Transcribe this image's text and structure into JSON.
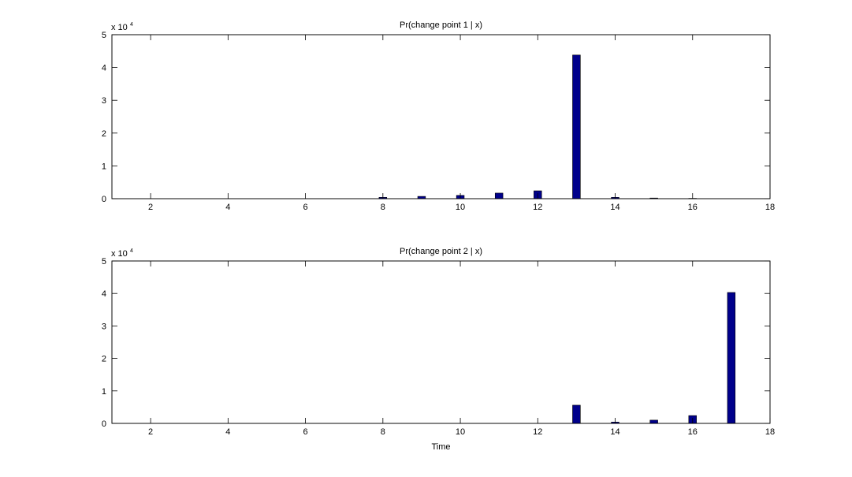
{
  "chart_data": [
    {
      "type": "bar",
      "title": "Pr(change point 1 | x)",
      "multiplier": {
        "base": "x 10",
        "exponent": "4"
      },
      "x": [
        8,
        9,
        10,
        11,
        12,
        13,
        14,
        15,
        16
      ],
      "values": [
        0.04,
        0.07,
        0.1,
        0.17,
        0.24,
        4.38,
        0.04,
        0.02,
        0.01
      ],
      "color": "#00008b",
      "xlim": [
        1,
        18
      ],
      "xticks": [
        2,
        4,
        6,
        8,
        10,
        12,
        14,
        16,
        18
      ],
      "ylim": [
        0,
        5
      ],
      "yticks": [
        0,
        1,
        2,
        3,
        4,
        5
      ]
    },
    {
      "type": "bar",
      "title": "Pr(change point 2 | x)",
      "xlabel": "Time",
      "multiplier": {
        "base": "x 10",
        "exponent": "4"
      },
      "x": [
        13,
        14,
        15,
        16,
        17
      ],
      "values": [
        0.56,
        0.04,
        0.1,
        0.24,
        4.03
      ],
      "color": "#00008b",
      "xlim": [
        1,
        18
      ],
      "xticks": [
        2,
        4,
        6,
        8,
        10,
        12,
        14,
        16,
        18
      ],
      "ylim": [
        0,
        5
      ],
      "yticks": [
        0,
        1,
        2,
        3,
        4,
        5
      ]
    }
  ]
}
